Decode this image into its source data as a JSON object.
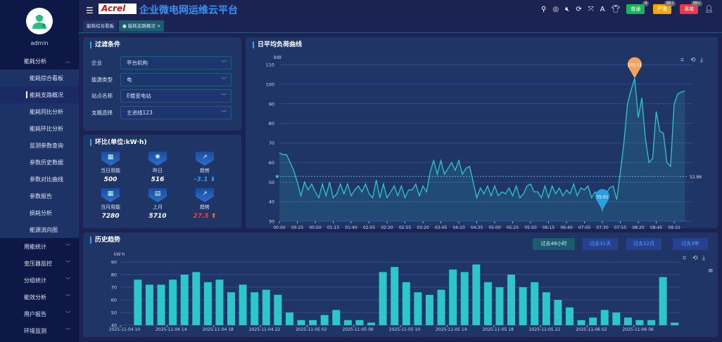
{
  "user": {
    "name": "admin"
  },
  "header": {
    "logo_text": "Acrel",
    "title": "企业微电网运维云平台",
    "alarms": [
      {
        "label": "普通",
        "count": "4",
        "color": "#17b45a"
      },
      {
        "label": "严重",
        "count": "99+",
        "color": "#f4a800"
      },
      {
        "label": "事故",
        "count": "99+",
        "color": "#e8384a"
      }
    ]
  },
  "sidebar": {
    "group": "能耗分析",
    "sub_items": [
      "能耗综合看板",
      "能耗支路概况",
      "能耗同比分析",
      "能耗环比分析",
      "监测参数查询",
      "参数历史数据",
      "参数对比曲线",
      "参数报告",
      "损耗分析",
      "能源流向图"
    ],
    "active_index": 1,
    "groups": [
      "用能统计",
      "变压器监控",
      "分组统计",
      "能效分析",
      "用户报告",
      "环境监测"
    ]
  },
  "tabs": [
    {
      "label": "能耗综合看板"
    },
    {
      "label": "能耗支路概况",
      "close": "×"
    }
  ],
  "filter": {
    "title": "过滤条件",
    "rows": [
      {
        "label": "企业",
        "value": "平台机构"
      },
      {
        "label": "能源类型",
        "value": "电"
      },
      {
        "label": "站点名称",
        "value": "E楼变电站"
      },
      {
        "label": "支路选择",
        "value": "主进线123"
      }
    ]
  },
  "ratio": {
    "title": "环比(单位:kW·h)",
    "items": [
      {
        "label": "当日用能",
        "value": "500"
      },
      {
        "label": "昨日",
        "value": "516"
      },
      {
        "label": "趋势",
        "value": "-3.1",
        "dir": "down",
        "color": "#2e9bff"
      },
      {
        "label": "当月用能",
        "value": "7280"
      },
      {
        "label": "上月",
        "value": "5710"
      },
      {
        "label": "趋势",
        "value": "27.5",
        "dir": "up",
        "color": "#ff3b3b"
      }
    ]
  },
  "load_chart": {
    "title": "日平均负荷曲线"
  },
  "history": {
    "title": "历史趋势",
    "buttons": [
      "过去48小时",
      "过去31天",
      "过去12月",
      "过去3年"
    ],
    "active": 0
  },
  "chart_data": [
    {
      "type": "line",
      "title": "日平均负荷曲线",
      "ylabel": "kW",
      "ylim": [
        30,
        110
      ],
      "yticks": [
        30,
        40,
        50,
        60,
        70,
        80,
        90,
        100,
        110
      ],
      "grid": true,
      "color": "#2ec7c9",
      "area": true,
      "xtick_labels": [
        "00:00",
        "00:25",
        "00:50",
        "01:15",
        "01:40",
        "02:05",
        "02:30",
        "02:55",
        "03:20",
        "03:45",
        "04:10",
        "04:35",
        "05:00",
        "05:25",
        "05:50",
        "06:15",
        "06:40",
        "07:05",
        "07:30",
        "07:55",
        "08:20",
        "08:45",
        "09:10"
      ],
      "x_interval_min": 5,
      "values": [
        65,
        64,
        64,
        60,
        56,
        50,
        43,
        50,
        46,
        49,
        45,
        42,
        49,
        43,
        50,
        42,
        44,
        49,
        44,
        49,
        43,
        46,
        48,
        45,
        49,
        44,
        42,
        51,
        42,
        49,
        42,
        45,
        48,
        43,
        48,
        42,
        46,
        46,
        49,
        43,
        48,
        45,
        55,
        61,
        54,
        61,
        54,
        57,
        60,
        56,
        61,
        54,
        57,
        58,
        50,
        42,
        47,
        44,
        48,
        43,
        48,
        43,
        45,
        44,
        47,
        43,
        48,
        42,
        44,
        48,
        49,
        45,
        45,
        42,
        48,
        42,
        48,
        44,
        47,
        43,
        46,
        44,
        49,
        43,
        47,
        46,
        48,
        42,
        45,
        41,
        35.61,
        44,
        47,
        48,
        41,
        55,
        70,
        90,
        97,
        103.01,
        83,
        93,
        72,
        60,
        62,
        86,
        76,
        75,
        60,
        58,
        90,
        95,
        96,
        96.5
      ],
      "max_label": "103.01",
      "min_label": "35.61",
      "average_label": "52.86"
    },
    {
      "type": "bar",
      "ylabel": "kW·h",
      "ylim": [
        40,
        90
      ],
      "yticks": [
        40,
        50,
        60,
        70,
        80,
        90
      ],
      "grid": true,
      "color": "#2ec7c9",
      "categories": [
        "2025-11-04 10",
        "2025-11-04 11",
        "2025-11-04 12",
        "2025-11-04 13",
        "2025-11-04 14",
        "2025-11-04 15",
        "2025-11-04 16",
        "2025-11-04 17",
        "2025-11-04 18",
        "2025-11-04 19",
        "2025-11-04 20",
        "2025-11-04 21",
        "2025-11-04 22",
        "2025-11-04 23",
        "2025-11-05 00",
        "2025-11-05 01",
        "2025-11-05 02",
        "2025-11-05 03",
        "2025-11-05 04",
        "2025-11-05 05",
        "2025-11-05 06",
        "2025-11-05 07",
        "2025-11-05 08",
        "2025-11-05 09",
        "2025-11-05 10",
        "2025-11-05 11",
        "2025-11-05 12",
        "2025-11-05 13",
        "2025-11-05 14",
        "2025-11-05 15",
        "2025-11-05 16",
        "2025-11-05 17",
        "2025-11-05 18",
        "2025-11-05 19",
        "2025-11-05 20",
        "2025-11-05 21",
        "2025-11-05 22",
        "2025-11-05 23",
        "2025-11-06 00",
        "2025-11-06 01",
        "2025-11-06 02",
        "2025-11-06 03",
        "2025-11-06 04",
        "2025-11-06 05",
        "2025-11-06 06",
        "2025-11-06 07",
        "2025-11-06 08",
        "2025-11-06 09"
      ],
      "values": [
        null,
        76,
        72,
        72,
        76,
        80,
        82,
        74,
        76,
        66,
        72,
        66,
        68,
        64,
        50,
        44,
        44,
        48,
        52,
        44,
        44,
        42,
        82,
        86,
        74,
        66,
        64,
        68,
        84,
        82,
        88,
        74,
        70,
        80,
        70,
        74,
        66,
        60,
        54,
        44,
        46,
        52,
        50,
        46,
        44,
        44,
        78,
        42
      ],
      "label_every": 4
    }
  ]
}
